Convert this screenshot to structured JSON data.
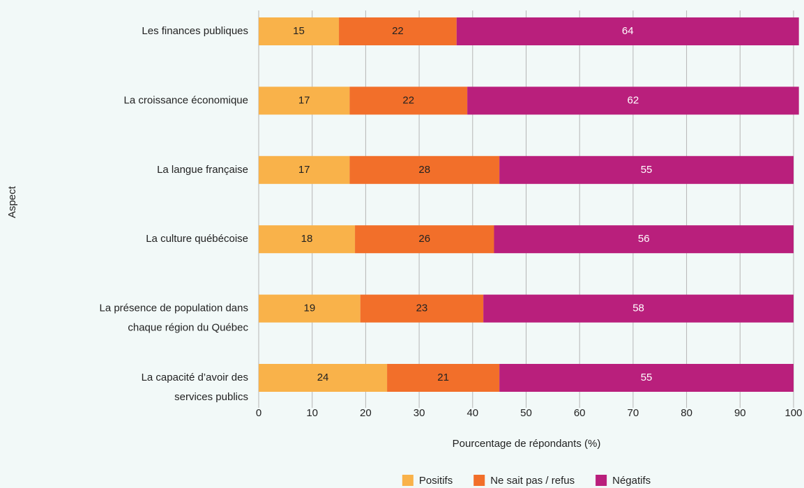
{
  "chart_data": {
    "type": "stacked_bar_horizontal",
    "y_label": "Aspect",
    "x_label": "Pourcentage de répondants (%)",
    "categories": [
      "Les finances publiques",
      "La croissance économique",
      "La langue française",
      "La culture québécoise",
      "La présence de population dans\nchaque région du Québec",
      "La capacité d’avoir des\nservices publics"
    ],
    "series": [
      {
        "name": "Positifs",
        "color": "#f9b24a",
        "values": [
          15,
          17,
          17,
          18,
          19,
          24
        ]
      },
      {
        "name": "Ne sait pas / refus",
        "color": "#f26f2a",
        "values": [
          22,
          22,
          28,
          26,
          23,
          21
        ]
      },
      {
        "name": "Négatifs",
        "color": "#b91f7c",
        "values": [
          64,
          62,
          55,
          56,
          58,
          55
        ]
      }
    ],
    "xlim": [
      0,
      100
    ],
    "xticks": [
      0,
      10,
      20,
      30,
      40,
      50,
      60,
      70,
      80,
      90,
      100
    ],
    "grid": true,
    "legend": "bottom"
  }
}
